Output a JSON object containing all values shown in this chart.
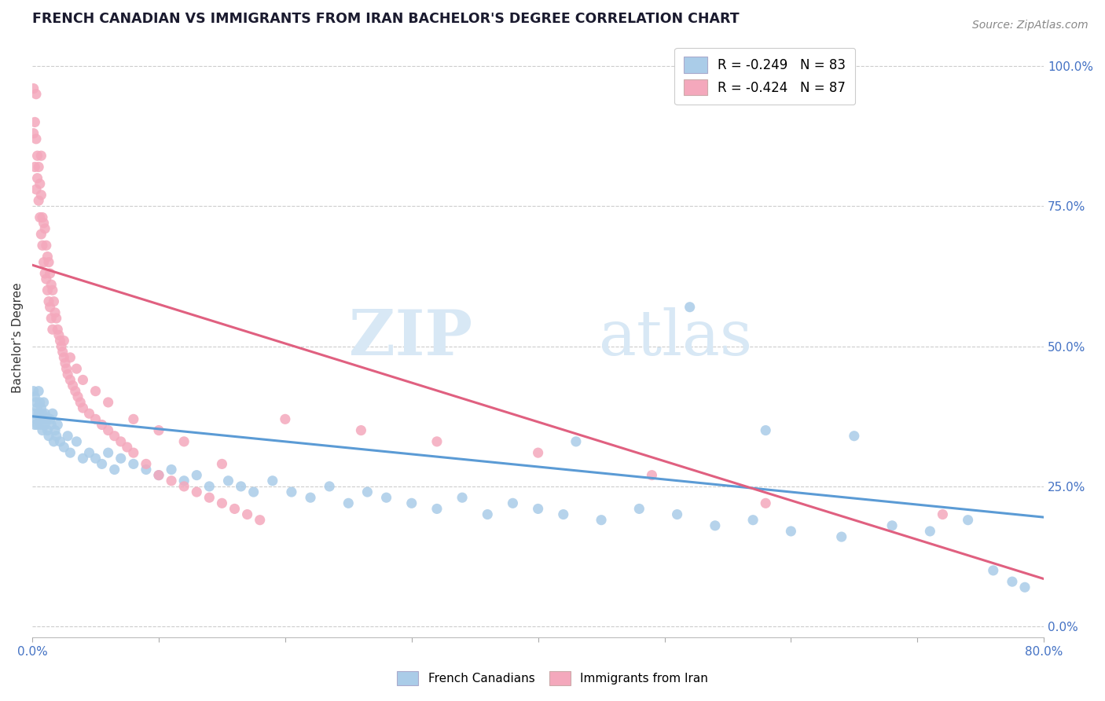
{
  "title": "FRENCH CANADIAN VS IMMIGRANTS FROM IRAN BACHELOR'S DEGREE CORRELATION CHART",
  "source_text": "Source: ZipAtlas.com",
  "ylabel": "Bachelor's Degree",
  "right_yticks": [
    "0.0%",
    "25.0%",
    "50.0%",
    "75.0%",
    "100.0%"
  ],
  "right_ytick_vals": [
    0.0,
    0.25,
    0.5,
    0.75,
    1.0
  ],
  "legend_entry1": "R = -0.249   N = 83",
  "legend_entry2": "R = -0.424   N = 87",
  "blue_color": "#aacce8",
  "pink_color": "#f4a8bc",
  "blue_line_color": "#5b9bd5",
  "pink_line_color": "#e06080",
  "watermark_zip": "ZIP",
  "watermark_atlas": "atlas",
  "xlim": [
    0.0,
    0.8
  ],
  "ylim": [
    -0.02,
    1.05
  ],
  "blue_line_x0": 0.0,
  "blue_line_y0": 0.375,
  "blue_line_x1": 0.8,
  "blue_line_y1": 0.195,
  "pink_line_x0": 0.0,
  "pink_line_y0": 0.645,
  "pink_line_x1": 0.8,
  "pink_line_y1": 0.085,
  "figsize": [
    14.06,
    8.92
  ],
  "dpi": 100,
  "blue_scatter_x": [
    0.001,
    0.001,
    0.002,
    0.002,
    0.003,
    0.003,
    0.004,
    0.004,
    0.005,
    0.005,
    0.006,
    0.006,
    0.007,
    0.007,
    0.008,
    0.008,
    0.009,
    0.009,
    0.01,
    0.01,
    0.011,
    0.012,
    0.013,
    0.014,
    0.015,
    0.016,
    0.017,
    0.018,
    0.019,
    0.02,
    0.022,
    0.025,
    0.028,
    0.03,
    0.035,
    0.04,
    0.045,
    0.05,
    0.055,
    0.06,
    0.065,
    0.07,
    0.08,
    0.09,
    0.1,
    0.11,
    0.12,
    0.13,
    0.14,
    0.155,
    0.165,
    0.175,
    0.19,
    0.205,
    0.22,
    0.235,
    0.25,
    0.265,
    0.28,
    0.3,
    0.32,
    0.34,
    0.36,
    0.38,
    0.4,
    0.42,
    0.45,
    0.48,
    0.51,
    0.54,
    0.57,
    0.6,
    0.64,
    0.68,
    0.71,
    0.74,
    0.76,
    0.775,
    0.785,
    0.52,
    0.58,
    0.65,
    0.43
  ],
  "blue_scatter_y": [
    0.42,
    0.38,
    0.41,
    0.36,
    0.4,
    0.37,
    0.39,
    0.36,
    0.38,
    0.42,
    0.4,
    0.37,
    0.36,
    0.39,
    0.38,
    0.35,
    0.37,
    0.4,
    0.36,
    0.38,
    0.37,
    0.35,
    0.34,
    0.37,
    0.36,
    0.38,
    0.33,
    0.35,
    0.34,
    0.36,
    0.33,
    0.32,
    0.34,
    0.31,
    0.33,
    0.3,
    0.31,
    0.3,
    0.29,
    0.31,
    0.28,
    0.3,
    0.29,
    0.28,
    0.27,
    0.28,
    0.26,
    0.27,
    0.25,
    0.26,
    0.25,
    0.24,
    0.26,
    0.24,
    0.23,
    0.25,
    0.22,
    0.24,
    0.23,
    0.22,
    0.21,
    0.23,
    0.2,
    0.22,
    0.21,
    0.2,
    0.19,
    0.21,
    0.2,
    0.18,
    0.19,
    0.17,
    0.16,
    0.18,
    0.17,
    0.19,
    0.1,
    0.08,
    0.07,
    0.57,
    0.35,
    0.34,
    0.33
  ],
  "pink_scatter_x": [
    0.001,
    0.001,
    0.002,
    0.002,
    0.003,
    0.003,
    0.003,
    0.004,
    0.004,
    0.005,
    0.005,
    0.006,
    0.006,
    0.007,
    0.007,
    0.007,
    0.008,
    0.008,
    0.009,
    0.009,
    0.01,
    0.01,
    0.011,
    0.011,
    0.012,
    0.012,
    0.013,
    0.013,
    0.014,
    0.014,
    0.015,
    0.015,
    0.016,
    0.016,
    0.017,
    0.018,
    0.019,
    0.02,
    0.021,
    0.022,
    0.023,
    0.024,
    0.025,
    0.026,
    0.027,
    0.028,
    0.03,
    0.032,
    0.034,
    0.036,
    0.038,
    0.04,
    0.045,
    0.05,
    0.055,
    0.06,
    0.065,
    0.07,
    0.075,
    0.08,
    0.09,
    0.1,
    0.11,
    0.12,
    0.13,
    0.14,
    0.15,
    0.16,
    0.17,
    0.18,
    0.025,
    0.03,
    0.035,
    0.04,
    0.05,
    0.06,
    0.08,
    0.1,
    0.12,
    0.15,
    0.2,
    0.26,
    0.32,
    0.4,
    0.49,
    0.58,
    0.72
  ],
  "pink_scatter_y": [
    0.96,
    0.88,
    0.9,
    0.82,
    0.87,
    0.78,
    0.95,
    0.8,
    0.84,
    0.82,
    0.76,
    0.79,
    0.73,
    0.77,
    0.7,
    0.84,
    0.73,
    0.68,
    0.72,
    0.65,
    0.71,
    0.63,
    0.68,
    0.62,
    0.66,
    0.6,
    0.65,
    0.58,
    0.63,
    0.57,
    0.61,
    0.55,
    0.6,
    0.53,
    0.58,
    0.56,
    0.55,
    0.53,
    0.52,
    0.51,
    0.5,
    0.49,
    0.48,
    0.47,
    0.46,
    0.45,
    0.44,
    0.43,
    0.42,
    0.41,
    0.4,
    0.39,
    0.38,
    0.37,
    0.36,
    0.35,
    0.34,
    0.33,
    0.32,
    0.31,
    0.29,
    0.27,
    0.26,
    0.25,
    0.24,
    0.23,
    0.22,
    0.21,
    0.2,
    0.19,
    0.51,
    0.48,
    0.46,
    0.44,
    0.42,
    0.4,
    0.37,
    0.35,
    0.33,
    0.29,
    0.37,
    0.35,
    0.33,
    0.31,
    0.27,
    0.22,
    0.2
  ]
}
